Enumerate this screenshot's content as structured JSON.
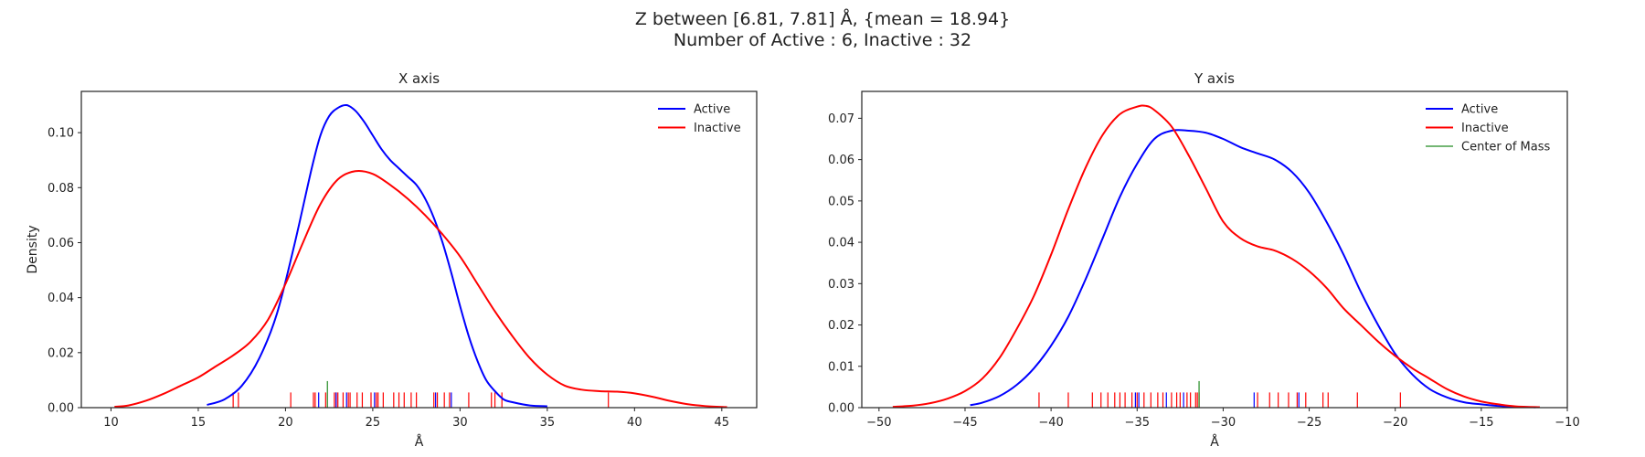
{
  "figure": {
    "title_line1": "Z between [6.81, 7.81] Å, {mean = 18.94}",
    "title_line2": "Number of Active : 6, Inactive : 32"
  },
  "colors": {
    "active": "#0000ff",
    "inactive": "#ff0000",
    "center": "#228b22"
  },
  "chart_data": [
    {
      "type": "line",
      "title": "X axis",
      "xlabel": "Å",
      "ylabel": "Density",
      "xlim": [
        8.3,
        47.0
      ],
      "ylim": [
        0,
        0.115
      ],
      "xticks": [
        10,
        15,
        20,
        25,
        30,
        35,
        40,
        45
      ],
      "yticks": [
        0.0,
        0.02,
        0.04,
        0.06,
        0.08,
        0.1
      ],
      "ytick_labels": [
        "0.00",
        "0.02",
        "0.04",
        "0.06",
        "0.08",
        "0.10"
      ],
      "grid": false,
      "legend": "top-right",
      "series": [
        {
          "name": "Active",
          "x": [
            15.5,
            16.5,
            17.5,
            18.5,
            19.5,
            20.5,
            21.5,
            22.0,
            22.5,
            23.0,
            23.5,
            24.0,
            24.5,
            25.0,
            25.5,
            26.0,
            26.5,
            27.0,
            27.5,
            28.0,
            28.5,
            29.0,
            29.5,
            30.0,
            30.5,
            31.0,
            31.5,
            32.0,
            32.5,
            33.0,
            34.0,
            35.0
          ],
          "y": [
            0.001,
            0.003,
            0.008,
            0.018,
            0.034,
            0.059,
            0.087,
            0.099,
            0.106,
            0.109,
            0.11,
            0.108,
            0.104,
            0.099,
            0.094,
            0.09,
            0.087,
            0.084,
            0.081,
            0.076,
            0.069,
            0.06,
            0.049,
            0.037,
            0.026,
            0.017,
            0.01,
            0.006,
            0.003,
            0.002,
            0.0008,
            0.0005
          ]
        },
        {
          "name": "Inactive",
          "x": [
            10.2,
            11.0,
            12.0,
            13.0,
            14.0,
            15.0,
            16.0,
            17.0,
            18.0,
            19.0,
            20.0,
            21.0,
            22.0,
            23.0,
            24.0,
            25.0,
            26.0,
            27.0,
            28.0,
            29.0,
            30.0,
            31.0,
            32.0,
            33.0,
            34.0,
            35.0,
            36.0,
            37.0,
            38.0,
            39.0,
            40.0,
            41.0,
            42.0,
            43.0,
            44.0,
            45.3
          ],
          "y": [
            0.0003,
            0.0008,
            0.0025,
            0.005,
            0.008,
            0.011,
            0.015,
            0.019,
            0.024,
            0.032,
            0.045,
            0.06,
            0.074,
            0.083,
            0.086,
            0.085,
            0.081,
            0.076,
            0.07,
            0.063,
            0.055,
            0.045,
            0.035,
            0.026,
            0.018,
            0.012,
            0.008,
            0.0065,
            0.006,
            0.0058,
            0.0052,
            0.004,
            0.0025,
            0.0013,
            0.0006,
            0.0002
          ]
        }
      ],
      "rug": {
        "active": [
          21.9,
          22.9,
          23.5,
          25.1,
          28.6,
          29.5
        ],
        "inactive": [
          17.0,
          17.3,
          20.3,
          21.6,
          21.7,
          22.3,
          22.8,
          22.9,
          23.0,
          23.3,
          23.7,
          24.1,
          24.4,
          24.9,
          25.2,
          25.3,
          25.6,
          26.5,
          26.8,
          27.2,
          27.5,
          28.5,
          28.7,
          29.1,
          29.4,
          30.5,
          31.8,
          32.0,
          32.4,
          38.5,
          23.6,
          26.2
        ],
        "center_of_mass": 22.4
      }
    },
    {
      "type": "line",
      "title": "Y axis",
      "xlabel": "Å",
      "ylabel": "",
      "xlim": [
        -51.0,
        -10.0
      ],
      "ylim": [
        0,
        0.0765
      ],
      "xticks": [
        -50,
        -45,
        -40,
        -35,
        -30,
        -25,
        -20,
        -15,
        -10
      ],
      "xtick_labels": [
        "−50",
        "−45",
        "−40",
        "−35",
        "−30",
        "−25",
        "−20",
        "−15",
        "−10"
      ],
      "yticks": [
        0.0,
        0.01,
        0.02,
        0.03,
        0.04,
        0.05,
        0.06,
        0.07
      ],
      "ytick_labels": [
        "0.00",
        "0.01",
        "0.02",
        "0.03",
        "0.04",
        "0.05",
        "0.06",
        "0.07"
      ],
      "grid": false,
      "legend": "top-right",
      "series": [
        {
          "name": "Active",
          "x": [
            -44.7,
            -44.0,
            -43.0,
            -42.0,
            -41.0,
            -40.0,
            -39.0,
            -38.0,
            -37.0,
            -36.0,
            -35.0,
            -34.0,
            -33.0,
            -32.0,
            -31.0,
            -30.0,
            -29.0,
            -28.0,
            -27.0,
            -26.0,
            -25.0,
            -24.0,
            -23.0,
            -22.0,
            -21.0,
            -20.0,
            -19.0,
            -18.0,
            -17.0,
            -16.0,
            -15.0,
            -14.0,
            -13.0,
            -12.0,
            -11.8
          ],
          "y": [
            0.0006,
            0.0012,
            0.0028,
            0.0055,
            0.0095,
            0.015,
            0.022,
            0.031,
            0.041,
            0.051,
            0.059,
            0.065,
            0.067,
            0.067,
            0.0665,
            0.065,
            0.063,
            0.0615,
            0.06,
            0.057,
            0.052,
            0.045,
            0.037,
            0.028,
            0.02,
            0.013,
            0.008,
            0.0045,
            0.0025,
            0.0013,
            0.0008,
            0.0004,
            0.0002,
            0.0001,
            0.0001
          ]
        },
        {
          "name": "Inactive",
          "x": [
            -49.2,
            -48.0,
            -47.0,
            -46.0,
            -45.0,
            -44.0,
            -43.0,
            -42.0,
            -41.0,
            -40.0,
            -39.0,
            -38.0,
            -37.0,
            -36.0,
            -35.0,
            -34.5,
            -34.0,
            -33.0,
            -32.0,
            -31.0,
            -30.0,
            -29.0,
            -28.0,
            -27.0,
            -26.0,
            -25.0,
            -24.0,
            -23.0,
            -22.0,
            -21.0,
            -20.0,
            -19.0,
            -18.0,
            -17.0,
            -16.0,
            -15.0,
            -14.0,
            -13.0,
            -11.6
          ],
          "y": [
            0.0002,
            0.0005,
            0.0011,
            0.0022,
            0.004,
            0.007,
            0.012,
            0.019,
            0.027,
            0.037,
            0.048,
            0.058,
            0.066,
            0.071,
            0.0728,
            0.073,
            0.072,
            0.068,
            0.061,
            0.053,
            0.045,
            0.041,
            0.039,
            0.038,
            0.036,
            0.033,
            0.029,
            0.024,
            0.02,
            0.016,
            0.0125,
            0.0095,
            0.007,
            0.0045,
            0.0027,
            0.0015,
            0.0008,
            0.0003,
            0.0001
          ]
        }
      ],
      "rug": {
        "active": [
          -35.1,
          -34.9,
          -33.3,
          -32.3,
          -28.2,
          -25.6
        ],
        "inactive": [
          -40.7,
          -39.0,
          -37.6,
          -37.1,
          -36.7,
          -36.3,
          -36.0,
          -35.7,
          -35.3,
          -35.0,
          -34.6,
          -34.2,
          -33.8,
          -33.5,
          -33.0,
          -32.7,
          -32.5,
          -32.1,
          -31.9,
          -31.6,
          -31.4,
          -28.0,
          -27.3,
          -26.8,
          -26.2,
          -25.7,
          -25.2,
          -24.2,
          -23.9,
          -22.2,
          -19.7,
          -31.5
        ],
        "center_of_mass": -31.4
      },
      "legend_extra": "Center of Mass"
    }
  ]
}
